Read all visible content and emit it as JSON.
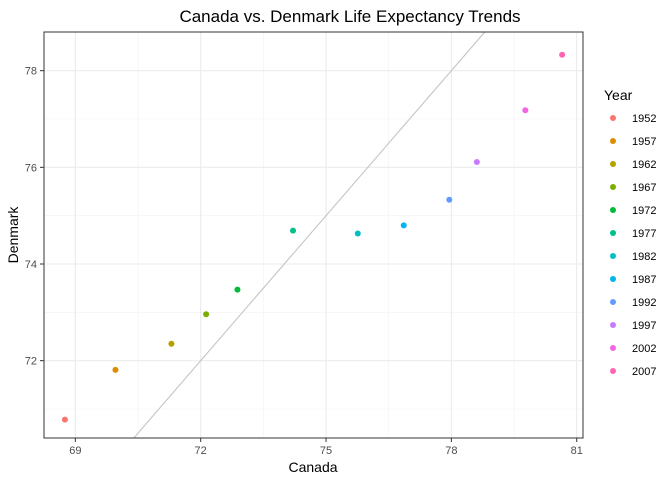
{
  "chart_data": {
    "type": "scatter",
    "title": "Canada vs. Denmark Life Expectancy Trends",
    "xlabel": "Canada",
    "ylabel": "Denmark",
    "xlim": [
      68.25,
      81.15
    ],
    "ylim": [
      70.4,
      78.8
    ],
    "x_ticks": [
      69,
      72,
      75,
      78,
      81
    ],
    "x_tick_labels": [
      "69",
      "72",
      "75",
      "78",
      "81"
    ],
    "y_ticks": [
      72,
      74,
      76,
      78
    ],
    "y_tick_labels": [
      "72",
      "74",
      "76",
      "78"
    ],
    "grid": true,
    "legend_position": "right",
    "legend_title": "Year",
    "reference_line": {
      "slope": 1,
      "intercept": 0
    },
    "series": [
      {
        "name": "1952",
        "color": "#F8766D",
        "x": 68.75,
        "y": 70.78
      },
      {
        "name": "1957",
        "color": "#DE8C00",
        "x": 69.96,
        "y": 71.81
      },
      {
        "name": "1962",
        "color": "#B79F00",
        "x": 71.3,
        "y": 72.35
      },
      {
        "name": "1967",
        "color": "#7CAE00",
        "x": 72.13,
        "y": 72.96
      },
      {
        "name": "1972",
        "color": "#00BA38",
        "x": 72.88,
        "y": 73.47
      },
      {
        "name": "1977",
        "color": "#00C08B",
        "x": 74.21,
        "y": 74.69
      },
      {
        "name": "1982",
        "color": "#00BFC4",
        "x": 75.76,
        "y": 74.63
      },
      {
        "name": "1987",
        "color": "#00B4F0",
        "x": 76.86,
        "y": 74.8
      },
      {
        "name": "1992",
        "color": "#619CFF",
        "x": 77.95,
        "y": 75.33
      },
      {
        "name": "1997",
        "color": "#C77CFF",
        "x": 78.61,
        "y": 76.11
      },
      {
        "name": "2002",
        "color": "#F564E3",
        "x": 79.77,
        "y": 77.18
      },
      {
        "name": "2007",
        "color": "#FF64B0",
        "x": 80.65,
        "y": 78.33
      }
    ]
  }
}
